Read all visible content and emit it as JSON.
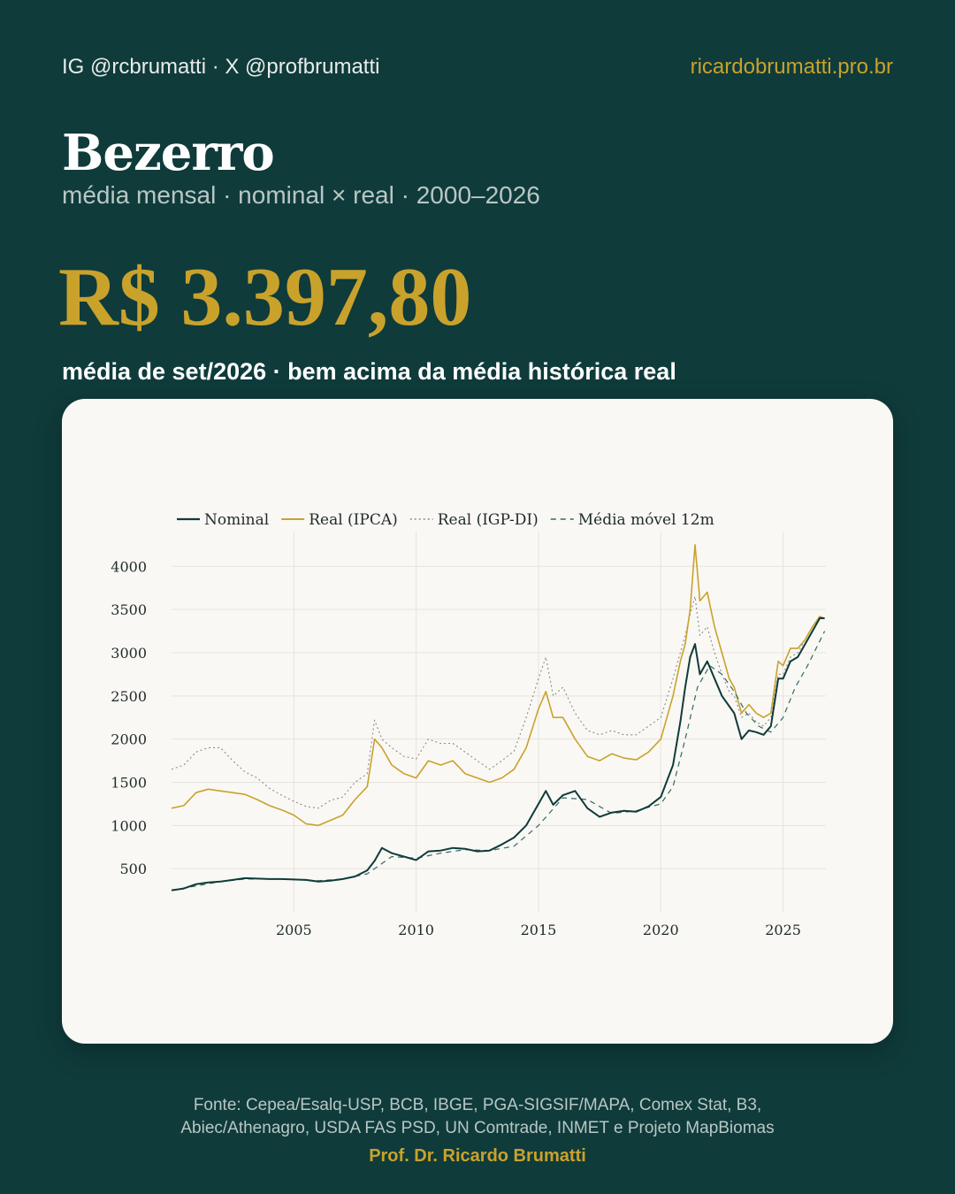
{
  "header": {
    "handles": "IG @rcbrumatti · X @profbrumatti",
    "site": "ricardobrumatti.pro.br"
  },
  "title": "Bezerro",
  "subtitle": "média mensal · nominal × real · 2000–2026",
  "highlight": {
    "value": "R$ 3.397,80",
    "caption": "média de set/2026 · bem acima da média histórica real"
  },
  "colors": {
    "background": "#0f3b3b",
    "accent": "#c9a22c",
    "card": "#faf8f4",
    "nominal": "#0f3b3b",
    "real_ipca": "#c9a22c",
    "real_igpdi": "#8a8a8a",
    "moving_avg": "#2f6b63"
  },
  "chart_data": {
    "type": "line",
    "xlabel": "",
    "ylabel": "",
    "xlim": [
      2000.0,
      2026.75
    ],
    "ylim": [
      0,
      4300
    ],
    "xticks": [
      2005,
      2010,
      2015,
      2020,
      2025
    ],
    "yticks": [
      500,
      1000,
      1500,
      2000,
      2500,
      3000,
      3500,
      4000
    ],
    "grid": true,
    "legend": "top-left",
    "series": [
      {
        "name": "Nominal",
        "style": "solid",
        "x": [
          2000.0,
          2000.5,
          2001.0,
          2001.5,
          2002.0,
          2002.5,
          2003.0,
          2003.5,
          2004.0,
          2004.5,
          2005.0,
          2005.5,
          2006.0,
          2006.5,
          2007.0,
          2007.5,
          2008.0,
          2008.3,
          2008.6,
          2009.0,
          2009.5,
          2010.0,
          2010.5,
          2011.0,
          2011.5,
          2012.0,
          2012.5,
          2013.0,
          2013.5,
          2014.0,
          2014.5,
          2015.0,
          2015.3,
          2015.6,
          2016.0,
          2016.5,
          2017.0,
          2017.5,
          2018.0,
          2018.5,
          2019.0,
          2019.5,
          2020.0,
          2020.5,
          2020.8,
          2021.0,
          2021.2,
          2021.4,
          2021.6,
          2021.9,
          2022.2,
          2022.5,
          2022.8,
          2023.0,
          2023.3,
          2023.6,
          2023.9,
          2024.2,
          2024.5,
          2024.8,
          2025.0,
          2025.3,
          2025.6,
          2025.9,
          2026.2,
          2026.5,
          2026.7
        ],
        "y": [
          250,
          270,
          320,
          340,
          350,
          370,
          390,
          385,
          380,
          380,
          375,
          370,
          350,
          360,
          380,
          410,
          480,
          590,
          740,
          680,
          640,
          600,
          700,
          710,
          740,
          730,
          700,
          710,
          780,
          860,
          1000,
          1250,
          1400,
          1240,
          1350,
          1400,
          1200,
          1100,
          1150,
          1170,
          1160,
          1220,
          1330,
          1700,
          2200,
          2600,
          2950,
          3100,
          2750,
          2900,
          2700,
          2500,
          2380,
          2300,
          2000,
          2100,
          2080,
          2050,
          2150,
          2700,
          2700,
          2900,
          2950,
          3100,
          3250,
          3400,
          3397.8
        ]
      },
      {
        "name": "Real (IPCA)",
        "style": "solid",
        "x": [
          2000.0,
          2000.5,
          2001.0,
          2001.5,
          2002.0,
          2002.5,
          2003.0,
          2003.5,
          2004.0,
          2004.5,
          2005.0,
          2005.5,
          2006.0,
          2006.5,
          2007.0,
          2007.5,
          2008.0,
          2008.3,
          2008.6,
          2009.0,
          2009.5,
          2010.0,
          2010.5,
          2011.0,
          2011.5,
          2012.0,
          2012.5,
          2013.0,
          2013.5,
          2014.0,
          2014.5,
          2015.0,
          2015.3,
          2015.6,
          2016.0,
          2016.5,
          2017.0,
          2017.5,
          2018.0,
          2018.5,
          2019.0,
          2019.5,
          2020.0,
          2020.5,
          2020.8,
          2021.0,
          2021.2,
          2021.4,
          2021.6,
          2021.9,
          2022.2,
          2022.5,
          2022.8,
          2023.0,
          2023.3,
          2023.6,
          2023.9,
          2024.2,
          2024.5,
          2024.8,
          2025.0,
          2025.3,
          2025.6,
          2025.9,
          2026.2,
          2026.5,
          2026.7
        ],
        "y": [
          1200,
          1230,
          1380,
          1420,
          1400,
          1380,
          1360,
          1300,
          1230,
          1180,
          1120,
          1020,
          1000,
          1060,
          1120,
          1300,
          1450,
          2000,
          1900,
          1700,
          1600,
          1550,
          1750,
          1700,
          1750,
          1600,
          1550,
          1500,
          1550,
          1650,
          1900,
          2350,
          2550,
          2250,
          2250,
          2000,
          1800,
          1750,
          1830,
          1780,
          1760,
          1850,
          2000,
          2500,
          2900,
          3100,
          3500,
          4250,
          3600,
          3700,
          3300,
          3000,
          2700,
          2600,
          2300,
          2400,
          2300,
          2250,
          2300,
          2900,
          2850,
          3050,
          3050,
          3150,
          3300,
          3420,
          3398
        ]
      },
      {
        "name": "Real (IGP-DI)",
        "style": "dotted",
        "x": [
          2000.0,
          2000.5,
          2001.0,
          2001.5,
          2002.0,
          2002.5,
          2003.0,
          2003.5,
          2004.0,
          2004.5,
          2005.0,
          2005.5,
          2006.0,
          2006.5,
          2007.0,
          2007.5,
          2008.0,
          2008.3,
          2008.6,
          2009.0,
          2009.5,
          2010.0,
          2010.5,
          2011.0,
          2011.5,
          2012.0,
          2012.5,
          2013.0,
          2013.5,
          2014.0,
          2014.5,
          2015.0,
          2015.3,
          2015.6,
          2016.0,
          2016.5,
          2017.0,
          2017.5,
          2018.0,
          2018.5,
          2019.0,
          2019.5,
          2020.0,
          2020.5,
          2020.8,
          2021.0,
          2021.2,
          2021.4,
          2021.6,
          2021.9,
          2022.2,
          2022.5,
          2022.8,
          2023.0,
          2023.3,
          2023.6,
          2023.9,
          2024.2,
          2024.5,
          2024.8,
          2025.0,
          2025.3,
          2025.6,
          2025.9,
          2026.2,
          2026.5,
          2026.7
        ],
        "y": [
          1650,
          1700,
          1850,
          1900,
          1900,
          1750,
          1620,
          1550,
          1430,
          1350,
          1280,
          1220,
          1200,
          1290,
          1330,
          1500,
          1600,
          2220,
          2000,
          1900,
          1800,
          1770,
          2000,
          1950,
          1950,
          1850,
          1750,
          1650,
          1750,
          1860,
          2250,
          2700,
          2950,
          2500,
          2600,
          2300,
          2100,
          2050,
          2100,
          2050,
          2050,
          2150,
          2250,
          2700,
          3000,
          3200,
          3450,
          3650,
          3200,
          3300,
          3000,
          2750,
          2550,
          2500,
          2250,
          2300,
          2200,
          2150,
          2250,
          2750,
          2750,
          2950,
          3000,
          3150,
          3300,
          3420,
          3398
        ]
      },
      {
        "name": "Média móvel 12m",
        "style": "dashed",
        "x": [
          2000.0,
          2001.0,
          2002.0,
          2003.0,
          2004.0,
          2005.0,
          2006.0,
          2007.0,
          2008.0,
          2009.0,
          2010.0,
          2011.0,
          2012.0,
          2013.0,
          2014.0,
          2015.0,
          2016.0,
          2017.0,
          2018.0,
          2019.0,
          2020.0,
          2020.5,
          2021.0,
          2021.5,
          2022.0,
          2022.5,
          2023.0,
          2023.5,
          2024.0,
          2024.5,
          2025.0,
          2025.5,
          2026.0,
          2026.7
        ],
        "y": [
          250,
          300,
          350,
          380,
          380,
          375,
          360,
          380,
          440,
          640,
          620,
          680,
          720,
          710,
          760,
          1000,
          1320,
          1300,
          1140,
          1170,
          1250,
          1450,
          2000,
          2600,
          2850,
          2750,
          2550,
          2300,
          2150,
          2080,
          2250,
          2600,
          2850,
          3250
        ]
      }
    ]
  }
}
